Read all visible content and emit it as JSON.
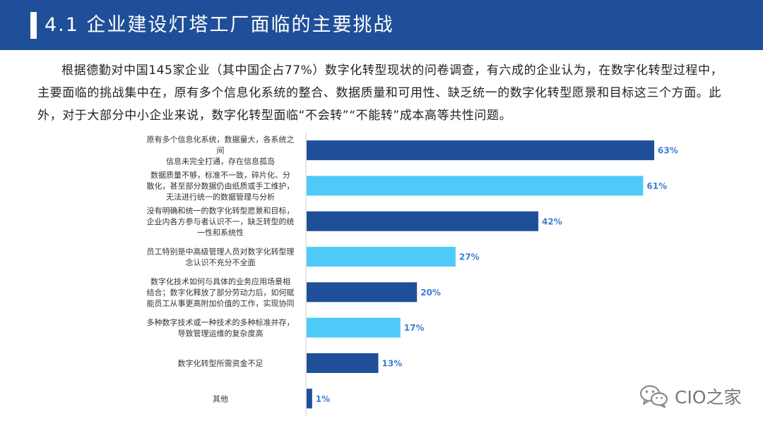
{
  "header": {
    "title": "4.1 企业建设灯塔工厂面临的主要挑战"
  },
  "intro": "根据德勤对中国145家企业（其中国企占77%）数字化转型现状的问卷调查，有六成的企业认为，在数字化转型过程中，主要面临的挑战集中在，原有多个信息化系统的整合、数据质量和可用性、缺乏统一的数字化转型愿景和目标这三个方面。此外，对于大部分中小企业来说，数字化转型面临“不会转”“不能转”成本高等共性问题。",
  "colors": {
    "header": "#1f4f99",
    "dark_bar": "#1f4f99",
    "light_bar": "#4dcaf8",
    "value_label": "#3b7fd4"
  },
  "chart_data": {
    "type": "bar",
    "orientation": "horizontal",
    "categories": [
      [
        "原有多个信息化系统，数据量大，各系统之",
        "间",
        "信息未完全打通，存在信息孤岛"
      ],
      [
        "数据质量不够，标准不一致，碎片化、分",
        "散化，甚至部分数据仍由纸质或手工维护，",
        "无法进行统一的数据管理与分析"
      ],
      [
        "没有明确和统一的数字化转型愿景和目标，",
        "企业内各方参与者认识不一，缺乏转型的统",
        "一性和系统性"
      ],
      [
        "员工特别是中高级管理人员对数字化转型理",
        "念认识不充分不全面"
      ],
      [
        "数字化技术如何与具体的业务应用场景相",
        "结合；数字化释放了部分劳动力后，如何赋",
        "能员工从事更高附加价值的工作，实现协同"
      ],
      [
        "多种数字技术或一种技术的多种标准并存，",
        "导致管理运维的复杂度高"
      ],
      [
        "数字化转型所需资金不足"
      ],
      [
        "其他"
      ]
    ],
    "values": [
      63,
      61,
      42,
      27,
      20,
      17,
      13,
      1
    ],
    "value_labels": [
      "63%",
      "61%",
      "42%",
      "27%",
      "20%",
      "17%",
      "13%",
      "1%"
    ],
    "bar_colors": [
      "#1f4f99",
      "#4dcaf8",
      "#1f4f99",
      "#4dcaf8",
      "#1f4f99",
      "#4dcaf8",
      "#1f4f99",
      "#1f4f99"
    ],
    "xlim": [
      0,
      63
    ],
    "grid": false
  },
  "watermark": {
    "icon": "wechat-icon",
    "text": "CIO之家"
  }
}
